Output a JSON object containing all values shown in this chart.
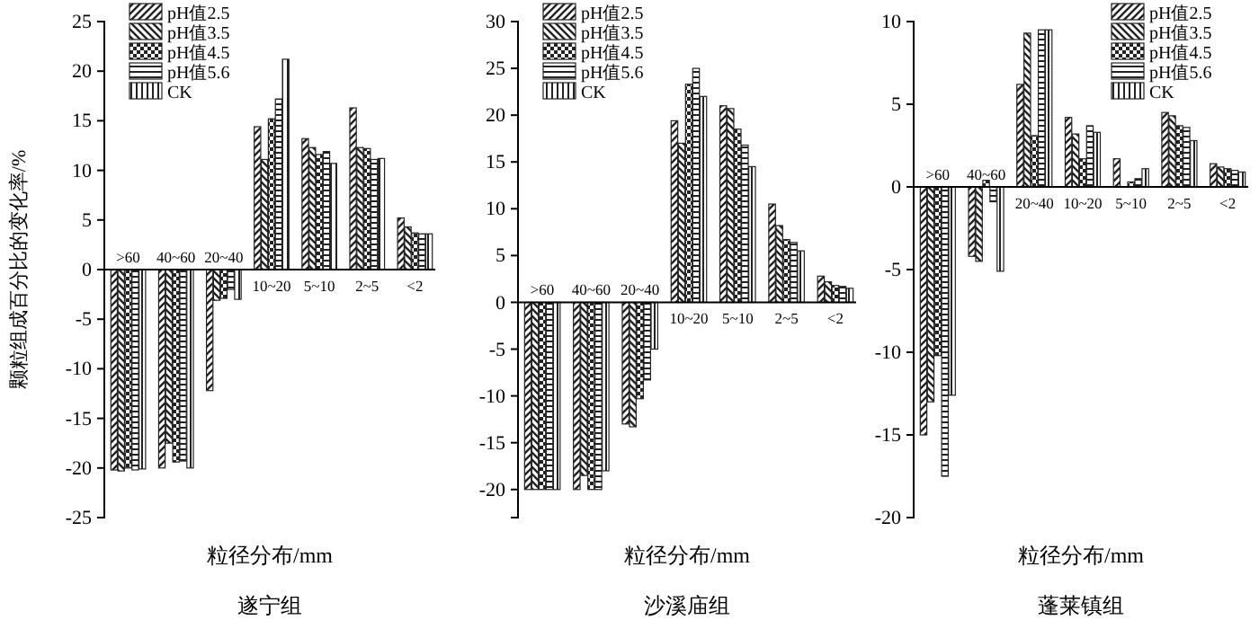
{
  "chart_data": [
    {
      "type": "bar",
      "xlabel": "粒径分布/mm",
      "ylabel": "颗粒组成百分比的变化率/%",
      "annotations": [
        "遂宁组"
      ],
      "categories": [
        ">60",
        "40~60",
        "20~40",
        "10~20",
        "5~10",
        "2~5",
        "<2"
      ],
      "ylim": [
        -25,
        25
      ],
      "yticks": [
        -25,
        -20,
        -15,
        -10,
        -5,
        0,
        5,
        10,
        15,
        20,
        25
      ],
      "grid": false,
      "legend": "top left",
      "series": [
        {
          "name": "pH值2.5",
          "color": "#222222",
          "values": [
            -20.2,
            -20,
            -12.2,
            14.4,
            13.2,
            16.3,
            5.2
          ]
        },
        {
          "name": "pH值3.5",
          "color": "#222222",
          "values": [
            -20.3,
            -17.5,
            -3.1,
            11.1,
            12.3,
            12.3,
            4.3
          ]
        },
        {
          "name": "pH值4.5",
          "color": "#222222",
          "values": [
            -20,
            -19.4,
            -2.9,
            15.2,
            11.6,
            12.2,
            3.7
          ]
        },
        {
          "name": "pH值5.6",
          "color": "#222222",
          "values": [
            -20.2,
            -19.3,
            -2,
            17.2,
            11.9,
            11.1,
            3.6
          ]
        },
        {
          "name": "CK",
          "color": "#222222",
          "values": [
            -20.1,
            -20,
            -3,
            21.2,
            10.7,
            11.2,
            3.6
          ]
        }
      ]
    },
    {
      "type": "bar",
      "xlabel": "粒径分布/mm",
      "annotations": [
        "沙溪庙组"
      ],
      "categories": [
        ">60",
        "40~60",
        "20~40",
        "10~20",
        "5~10",
        "2~5",
        "<2"
      ],
      "ylim": [
        -23,
        30
      ],
      "yticks": [
        -20,
        -15,
        -10,
        -5,
        0,
        5,
        10,
        15,
        20,
        25,
        30
      ],
      "grid": false,
      "legend": "top left",
      "series": [
        {
          "name": "pH值2.5",
          "color": "#222222",
          "values": [
            -20,
            -20,
            -13,
            19.4,
            21,
            10.5,
            2.8
          ]
        },
        {
          "name": "pH值3.5",
          "color": "#222222",
          "values": [
            -20,
            -18.5,
            -13.3,
            17,
            20.7,
            8.2,
            2.2
          ]
        },
        {
          "name": "pH值4.5",
          "color": "#222222",
          "values": [
            -20,
            -20,
            -10.3,
            23.3,
            18.5,
            6.7,
            1.8
          ]
        },
        {
          "name": "pH值5.6",
          "color": "#222222",
          "values": [
            -20,
            -20,
            -8.3,
            25,
            16.8,
            6.4,
            1.7
          ]
        },
        {
          "name": "CK",
          "color": "#222222",
          "values": [
            -20,
            -18,
            -5,
            22,
            14.5,
            5.5,
            1.5
          ]
        }
      ]
    },
    {
      "type": "bar",
      "xlabel": "粒径分布/mm",
      "annotations": [
        "蓬莱镇组"
      ],
      "categories": [
        ">60",
        "40~60",
        "20~40",
        "10~20",
        "5~10",
        "2~5",
        "<2"
      ],
      "ylim": [
        -20,
        10
      ],
      "yticks": [
        -20,
        -15,
        -10,
        -5,
        0,
        5,
        10
      ],
      "grid": false,
      "legend": "top right",
      "series": [
        {
          "name": "pH值2.5",
          "color": "#222222",
          "values": [
            -15,
            -4.2,
            6.2,
            4.2,
            1.7,
            4.5,
            1.4
          ]
        },
        {
          "name": "pH值3.5",
          "color": "#222222",
          "values": [
            -13,
            -4.5,
            9.3,
            3.2,
            null,
            4.3,
            1.2
          ]
        },
        {
          "name": "pH值4.5",
          "color": "#222222",
          "values": [
            -10.2,
            0.4,
            3.1,
            1.7,
            0.3,
            3.7,
            1.1
          ]
        },
        {
          "name": "pH值5.6",
          "color": "#222222",
          "values": [
            -17.5,
            -0.9,
            9.5,
            3.7,
            0.5,
            3.6,
            1
          ]
        },
        {
          "name": "CK",
          "color": "#222222",
          "values": [
            -12.6,
            -5.1,
            9.5,
            3.3,
            1.1,
            2.8,
            0.9
          ]
        }
      ]
    }
  ]
}
